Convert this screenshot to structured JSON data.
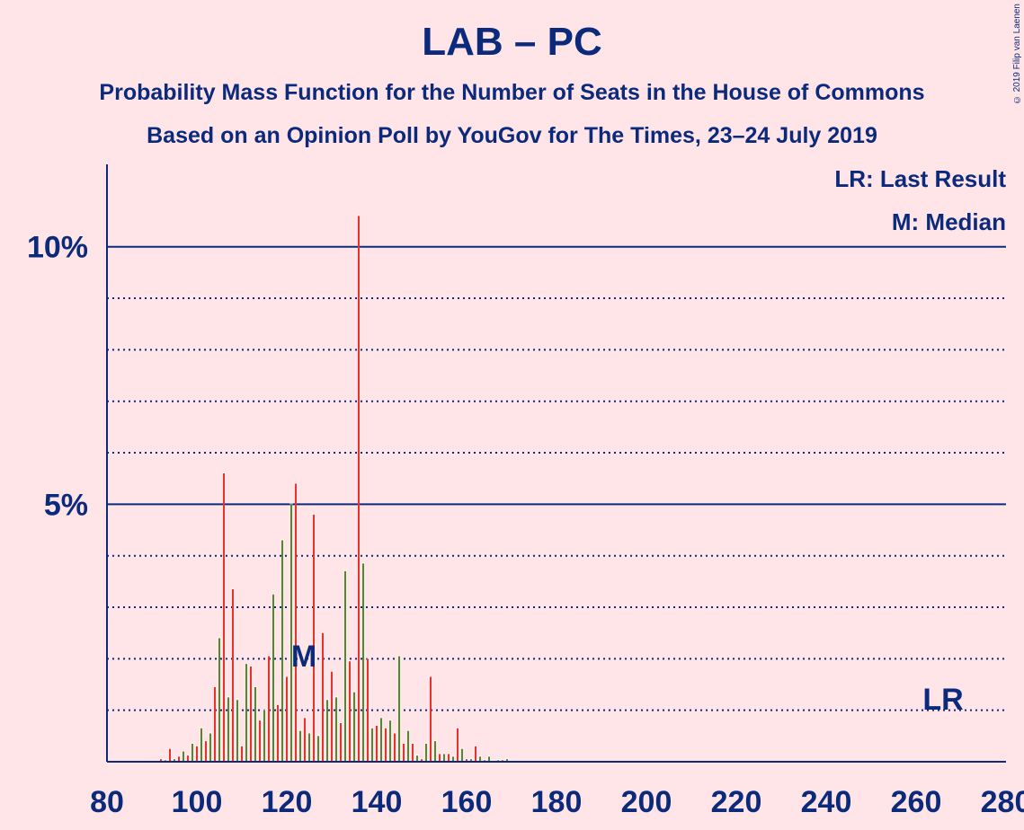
{
  "title": "LAB – PC",
  "subtitle_line1": "Probability Mass Function for the Number of Seats in the House of Commons",
  "subtitle_line2": "Based on an Opinion Poll by YouGov for The Times, 23–24 July 2019",
  "copyright": "© 2019 Filip van Laenen",
  "legend": {
    "last_result": "LR: Last Result",
    "median": "M: Median"
  },
  "markers": {
    "median_label": "M",
    "last_result_label": "LR"
  },
  "colors": {
    "background": "#ffe5e8",
    "axis": "#0b2a7c",
    "bar_even": "#e8322d",
    "bar_odd": "#4b8d2e"
  },
  "chart_data": {
    "type": "bar",
    "x": [
      90,
      91,
      92,
      93,
      94,
      95,
      96,
      97,
      98,
      99,
      100,
      101,
      102,
      103,
      104,
      105,
      106,
      107,
      108,
      109,
      110,
      111,
      112,
      113,
      114,
      115,
      116,
      117,
      118,
      119,
      120,
      121,
      122,
      123,
      124,
      125,
      126,
      127,
      128,
      129,
      130,
      131,
      132,
      133,
      134,
      135,
      136,
      137,
      138,
      139,
      140,
      141,
      142,
      143,
      144,
      145,
      146,
      147,
      148,
      149,
      150,
      151,
      152,
      153,
      154,
      155,
      156,
      157,
      158,
      159,
      160,
      161,
      162,
      163,
      164,
      165,
      166,
      167,
      168,
      169,
      170
    ],
    "values": [
      0.02,
      0.02,
      0.05,
      0.03,
      0.25,
      0.05,
      0.1,
      0.2,
      0.12,
      0.35,
      0.3,
      0.65,
      0.4,
      0.55,
      1.45,
      2.4,
      5.6,
      1.25,
      3.35,
      1.2,
      0.3,
      1.9,
      1.85,
      1.45,
      0.8,
      1.0,
      2.05,
      3.25,
      1.1,
      4.3,
      1.65,
      5.0,
      5.4,
      0.6,
      0.85,
      0.55,
      4.8,
      0.5,
      2.5,
      1.2,
      1.75,
      1.25,
      0.75,
      3.7,
      1.95,
      1.35,
      10.6,
      3.85,
      2.0,
      0.65,
      0.7,
      0.85,
      0.65,
      0.8,
      0.55,
      2.05,
      0.35,
      0.6,
      0.35,
      0.12,
      0.05,
      0.35,
      1.65,
      0.4,
      0.15,
      0.15,
      0.15,
      0.1,
      0.65,
      0.25,
      0.05,
      0.05,
      0.3,
      0.1,
      0.03,
      0.1,
      0.02,
      0.03,
      0.03,
      0.05,
      0.02
    ],
    "xlim": [
      80,
      280
    ],
    "ylim": [
      0,
      11.6
    ],
    "xticks": [
      80,
      100,
      120,
      140,
      160,
      180,
      200,
      220,
      240,
      260,
      280
    ],
    "yticks_labeled": [
      {
        "value": 5,
        "label": "5%"
      },
      {
        "value": 10,
        "label": "10%"
      }
    ],
    "grid_dotted": [
      1,
      2,
      3,
      4,
      6,
      7,
      8,
      9
    ],
    "median_seat": 124,
    "last_result_seat": 266
  }
}
